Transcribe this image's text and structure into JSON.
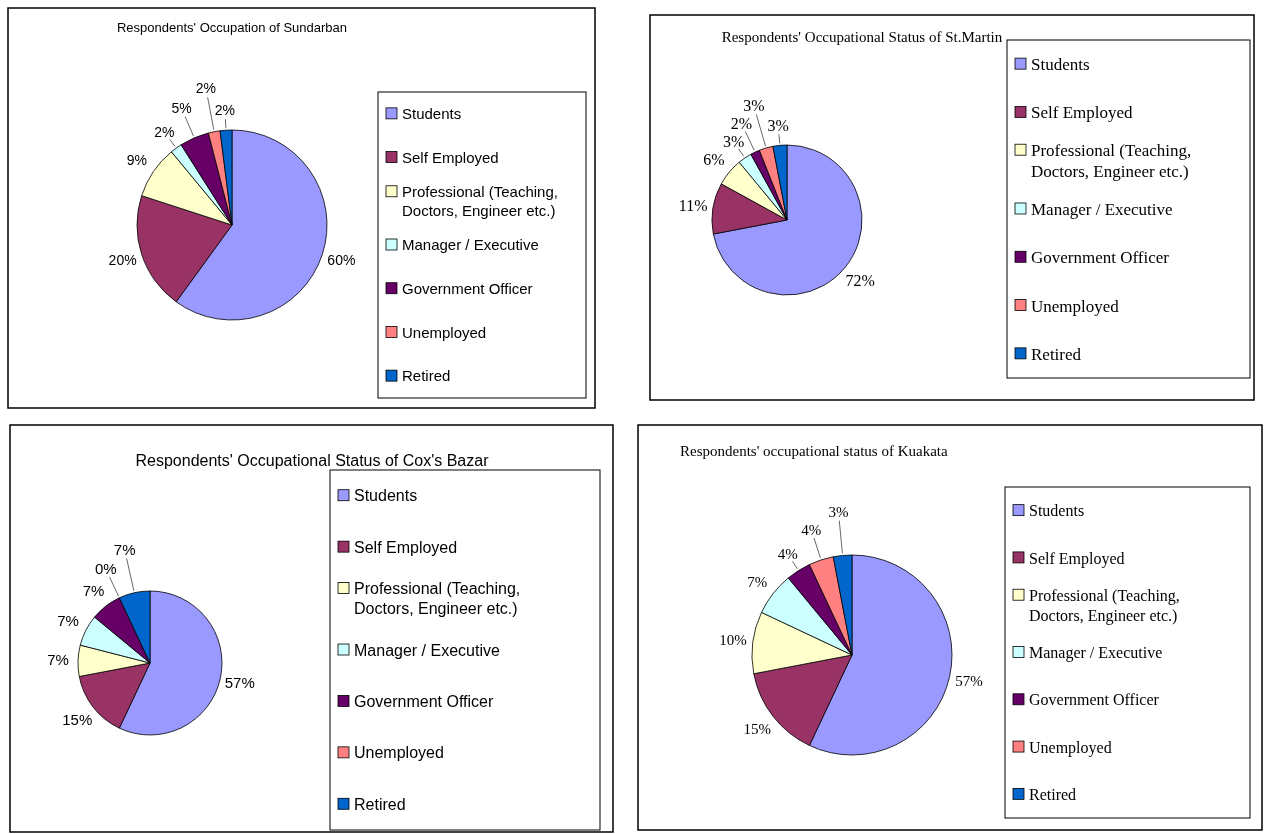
{
  "chart_data": [
    {
      "type": "pie",
      "title": "Respondents' Occupation of Sundarban",
      "categories": [
        "Students",
        "Self Employed",
        "Professional (Teaching, Doctors, Engineer etc.)",
        "Manager / Executive",
        "Government Officer",
        "Unemployed",
        "Retired"
      ],
      "values": [
        60,
        20,
        9,
        2,
        5,
        2,
        2
      ],
      "value_labels": [
        "60%",
        "20%",
        "9%",
        "2%",
        "5%",
        "2%",
        "2%"
      ],
      "colors": [
        "#9999ff",
        "#993366",
        "#ffffcc",
        "#ccffff",
        "#660066",
        "#ff8080",
        "#0066cc"
      ],
      "legend": "right"
    },
    {
      "type": "pie",
      "title": "Respondents' Occupational Status of St.Martin",
      "categories": [
        "Students",
        "Self Employed",
        "Professional (Teaching, Doctors, Engineer etc.)",
        "Manager / Executive",
        "Government Officer",
        "Unemployed",
        "Retired"
      ],
      "values": [
        72,
        11,
        6,
        3,
        2,
        3,
        3
      ],
      "value_labels": [
        "72%",
        "11%",
        "6%",
        "3%",
        "2%",
        "3%",
        "3%"
      ],
      "colors": [
        "#9999ff",
        "#993366",
        "#ffffcc",
        "#ccffff",
        "#660066",
        "#ff8080",
        "#0066cc"
      ],
      "legend": "right"
    },
    {
      "type": "pie",
      "title": "Respondents' Occupational Status of Cox's Bazar",
      "categories": [
        "Students",
        "Self Employed",
        "Professional (Teaching, Doctors, Engineer etc.)",
        "Manager / Executive",
        "Government Officer",
        "Unemployed",
        "Retired"
      ],
      "values": [
        57,
        15,
        7,
        7,
        7,
        0,
        7
      ],
      "value_labels": [
        "57%",
        "15%",
        "7%",
        "7%",
        "7%",
        "0%",
        "7%"
      ],
      "colors": [
        "#9999ff",
        "#993366",
        "#ffffcc",
        "#ccffff",
        "#660066",
        "#ff8080",
        "#0066cc"
      ],
      "legend": "right"
    },
    {
      "type": "pie",
      "title": "Respondents' occupational status of Kuakata",
      "categories": [
        "Students",
        "Self Employed",
        "Professional (Teaching, Doctors, Engineer etc.)",
        "Manager / Executive",
        "Government Officer",
        "Unemployed",
        "Retired"
      ],
      "values": [
        57,
        15,
        10,
        7,
        4,
        4,
        3
      ],
      "value_labels": [
        "57%",
        "15%",
        "10%",
        "7%",
        "4%",
        "4%",
        "3%"
      ],
      "colors": [
        "#9999ff",
        "#993366",
        "#ffffcc",
        "#ccffff",
        "#660066",
        "#ff8080",
        "#0066cc"
      ],
      "legend": "right"
    }
  ]
}
